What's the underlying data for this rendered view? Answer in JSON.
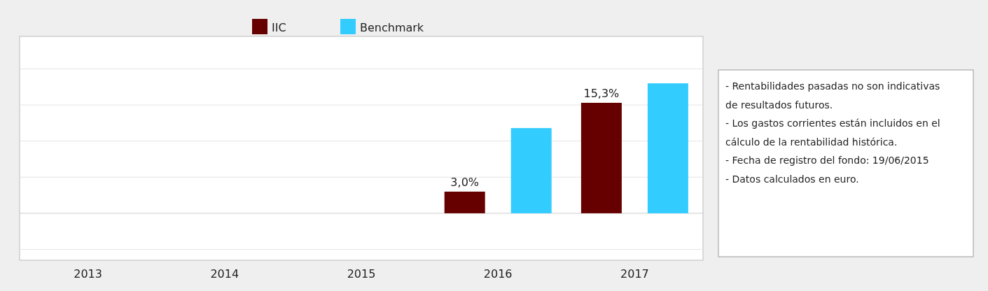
{
  "chart_data": {
    "type": "bar",
    "categories": [
      "2013",
      "2014",
      "2015",
      "2016",
      "2017"
    ],
    "series": [
      {
        "name": "IIC",
        "color": "#660000",
        "values": [
          null,
          null,
          null,
          3.0,
          15.3
        ],
        "value_labels": [
          null,
          null,
          null,
          "3,0%",
          "15,3%"
        ]
      },
      {
        "name": "Benchmark",
        "color": "#33ccff",
        "values": [
          null,
          null,
          null,
          11.8,
          18.0
        ]
      }
    ],
    "ylim": [
      -6.5,
      24.5
    ],
    "yticks": [
      {
        "value": -5,
        "label": null
      },
      {
        "value": 0,
        "label": null
      },
      {
        "value": 5,
        "label": null
      },
      {
        "value": 10,
        "label": null
      },
      {
        "value": 15,
        "label": null
      },
      {
        "value": 20,
        "label": null
      }
    ],
    "grid": "y",
    "legend": "top",
    "tick_labels": "x",
    "annotations": [
      "- Rentabilidades pasadas no son indicativas de resultados futuros.",
      "- Los gastos corrientes están incluidos en el cálculo de la rentabilidad histórica.",
      "- Fecha de registro del fondo: 19/06/2015",
      "- Datos calculados en euro."
    ]
  }
}
